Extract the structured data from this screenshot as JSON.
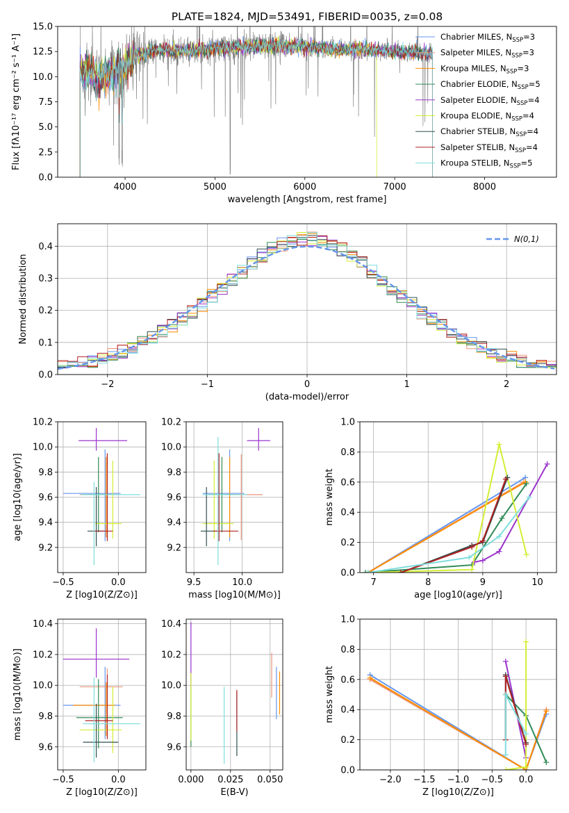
{
  "figure": {
    "title": "PLATE=1824, MJD=53491, FIBERID=0035, z=0.08"
  },
  "colors": {
    "Chabrier MILES": "#6495ED",
    "Salpeter MILES": "#E9967A",
    "Kroupa MILES": "#FF8C00",
    "Chabrier ELODIE": "#2E8B57",
    "Salpeter ELODIE": "#9932CC",
    "Kroupa ELODIE": "#D4EE34",
    "Chabrier STELIB": "#2F4F4F",
    "Salpeter STELIB": "#B22222",
    "Kroupa STELIB": "#7FDDDD",
    "data": "#808080",
    "normal": "#6495ED"
  },
  "chart_data": [
    {
      "id": "spectrum",
      "type": "line",
      "xlabel": "wavelength [Angstrom, rest frame]",
      "ylabel": "Flux [fλ10⁻¹⁷ erg cm⁻² s⁻¹ A⁻¹]",
      "xlim": [
        3250,
        8800
      ],
      "ylim": [
        0,
        15
      ],
      "xticks": [
        4000,
        5000,
        6000,
        7000,
        8000
      ],
      "yticks": [
        0.0,
        2.5,
        5.0,
        7.5,
        10.0,
        12.5,
        15.0
      ],
      "x_range_data": [
        3500,
        7420
      ],
      "legend_loc": "right",
      "legend": [
        {
          "name": "Chabrier MILES",
          "label": "Chabrier MILES, N",
          "sub": "SSP",
          "tail": "=3"
        },
        {
          "name": "Salpeter MILES",
          "label": "Salpeter MILES, N",
          "sub": "SSP",
          "tail": "=3"
        },
        {
          "name": "Kroupa MILES",
          "label": "Kroupa MILES, N",
          "sub": "SSP",
          "tail": "=3"
        },
        {
          "name": "Chabrier ELODIE",
          "label": "Chabrier ELODIE, N",
          "sub": "SSP",
          "tail": "=5"
        },
        {
          "name": "Salpeter ELODIE",
          "label": "Salpeter ELODIE, N",
          "sub": "SSP",
          "tail": "=4"
        },
        {
          "name": "Kroupa ELODIE",
          "label": "Kroupa ELODIE, N",
          "sub": "SSP",
          "tail": "=4"
        },
        {
          "name": "Chabrier STELIB",
          "label": "Chabrier STELIB, N",
          "sub": "SSP",
          "tail": "=4"
        },
        {
          "name": "Salpeter STELIB",
          "label": "Salpeter STELIB, N",
          "sub": "SSP",
          "tail": "=4"
        },
        {
          "name": "Kroupa STELIB",
          "label": "Kroupa STELIB, N",
          "sub": "SSP",
          "tail": "=5"
        }
      ]
    },
    {
      "id": "residuals",
      "type": "histogram",
      "xlabel": "(data-model)/error",
      "ylabel": "Normed distribution",
      "xlim": [
        -2.5,
        2.5
      ],
      "ylim": [
        0,
        0.47
      ],
      "xticks": [
        -2,
        -1,
        0,
        1,
        2
      ],
      "yticks": [
        0.0,
        0.1,
        0.2,
        0.3,
        0.4
      ],
      "grid": true,
      "bin_width": 0.1,
      "legend_loc": "top-right",
      "legend": "N(0,1)"
    },
    {
      "id": "age-vs-Z",
      "type": "errorbar",
      "xlabel": "Z [log10(Z/Z⊙)]",
      "ylabel": "age [log10(age/yr)]",
      "xlim": [
        -0.55,
        0.25
      ],
      "ylim": [
        9.0,
        10.2
      ],
      "xticks": [
        -0.5,
        0.0
      ],
      "yticks": [
        9.2,
        9.4,
        9.6,
        9.8,
        10.0,
        10.2
      ],
      "grid": true,
      "points": [
        {
          "name": "Chabrier MILES",
          "x": -0.12,
          "xerr": [
            0.38,
            0.14
          ],
          "y": 9.63,
          "yerr": [
            0.38,
            0.35
          ]
        },
        {
          "name": "Salpeter MILES",
          "x": -0.1,
          "xerr": [
            0.25,
            0.1
          ],
          "y": 9.62,
          "yerr": [
            0.36,
            0.32
          ]
        },
        {
          "name": "Kroupa MILES",
          "x": -0.11,
          "xerr": [
            0.22,
            0.08
          ],
          "y": 9.62,
          "yerr": [
            0.34,
            0.3
          ]
        },
        {
          "name": "Chabrier ELODIE",
          "x": -0.18,
          "xerr": [
            0.12,
            0.12
          ],
          "y": 9.62,
          "yerr": [
            0.3,
            0.3
          ]
        },
        {
          "name": "Salpeter ELODIE",
          "x": -0.2,
          "xerr": [
            0.16,
            0.28
          ],
          "y": 10.05,
          "yerr": [
            0.08,
            0.1
          ]
        },
        {
          "name": "Kroupa ELODIE",
          "x": -0.05,
          "xerr": [
            0.16,
            0.08
          ],
          "y": 9.39,
          "yerr": [
            0.12,
            0.5
          ]
        },
        {
          "name": "Chabrier STELIB",
          "x": -0.2,
          "xerr": [
            0.08,
            0.07
          ],
          "y": 9.33,
          "yerr": [
            0.12,
            0.35
          ]
        },
        {
          "name": "Salpeter STELIB",
          "x": -0.1,
          "xerr": [
            0.12,
            0.05
          ],
          "y": 9.33,
          "yerr": [
            0.08,
            0.62
          ]
        },
        {
          "name": "Kroupa STELIB",
          "x": -0.22,
          "xerr": [
            0.12,
            0.42
          ],
          "y": 9.62,
          "yerr": [
            0.56,
            0.1
          ]
        }
      ]
    },
    {
      "id": "age-vs-mass",
      "type": "errorbar",
      "xlabel": "mass [log10(M/M⊙)]",
      "ylabel": "",
      "xlim": [
        9.42,
        10.42
      ],
      "ylim": [
        9.0,
        10.2
      ],
      "xticks": [
        9.5,
        10.0
      ],
      "yticks": [
        9.2,
        9.4,
        9.6,
        9.8,
        10.0,
        10.2
      ],
      "grid": true,
      "points": [
        {
          "name": "Chabrier MILES",
          "x": 9.87,
          "xerr": [
            0.28,
            0.15
          ],
          "y": 9.63,
          "yerr": [
            0.38,
            0.35
          ]
        },
        {
          "name": "Salpeter MILES",
          "x": 9.99,
          "xerr": [
            0.12,
            0.22
          ],
          "y": 9.62,
          "yerr": [
            0.36,
            0.32
          ]
        },
        {
          "name": "Kroupa MILES",
          "x": 9.87,
          "xerr": [
            0.2,
            0.12
          ],
          "y": 9.62,
          "yerr": [
            0.34,
            0.3
          ]
        },
        {
          "name": "Chabrier ELODIE",
          "x": 9.79,
          "xerr": [
            0.16,
            0.12
          ],
          "y": 9.62,
          "yerr": [
            0.3,
            0.3
          ]
        },
        {
          "name": "Salpeter ELODIE",
          "x": 10.17,
          "xerr": [
            0.12,
            0.12
          ],
          "y": 10.05,
          "yerr": [
            0.08,
            0.1
          ]
        },
        {
          "name": "Kroupa ELODIE",
          "x": 9.71,
          "xerr": [
            0.12,
            0.2
          ],
          "y": 9.39,
          "yerr": [
            0.12,
            0.5
          ]
        },
        {
          "name": "Chabrier STELIB",
          "x": 9.63,
          "xerr": [
            0.06,
            0.12
          ],
          "y": 9.33,
          "yerr": [
            0.12,
            0.35
          ]
        },
        {
          "name": "Salpeter STELIB",
          "x": 9.76,
          "xerr": [
            0.06,
            0.2
          ],
          "y": 9.33,
          "yerr": [
            0.08,
            0.62
          ]
        },
        {
          "name": "Kroupa STELIB",
          "x": 9.75,
          "xerr": [
            0.16,
            0.3
          ],
          "y": 9.62,
          "yerr": [
            0.56,
            0.46
          ]
        }
      ]
    },
    {
      "id": "weight-vs-age",
      "type": "line",
      "xlabel": "age [log10(age/yr)]",
      "ylabel": "mass weight",
      "xlim": [
        6.75,
        10.35
      ],
      "ylim": [
        0,
        1
      ],
      "xticks": [
        7,
        8,
        9,
        10
      ],
      "yticks": [
        0.0,
        0.2,
        0.4,
        0.6,
        0.8,
        1.0
      ],
      "grid": true,
      "series": [
        {
          "name": "Chabrier MILES",
          "x": [
            6.9,
            9.78
          ],
          "y": [
            0.0,
            0.63
          ]
        },
        {
          "name": "Salpeter MILES",
          "x": [
            6.9,
            9.75
          ],
          "y": [
            0.0,
            0.6
          ]
        },
        {
          "name": "Kroupa MILES",
          "x": [
            6.9,
            9.78
          ],
          "y": [
            0.0,
            0.6
          ]
        },
        {
          "name": "Chabrier ELODIE",
          "x": [
            6.85,
            8.8,
            9.35,
            9.8
          ],
          "y": [
            0.0,
            0.05,
            0.36,
            0.59
          ]
        },
        {
          "name": "Salpeter ELODIE",
          "x": [
            8.85,
            9.0,
            9.3,
            10.18
          ],
          "y": [
            0.07,
            0.08,
            0.14,
            0.72
          ]
        },
        {
          "name": "Kroupa ELODIE",
          "x": [
            6.9,
            8.8,
            9.3,
            9.8
          ],
          "y": [
            0.0,
            0.02,
            0.85,
            0.12
          ]
        },
        {
          "name": "Chabrier STELIB",
          "x": [
            7.5,
            8.8,
            9.0,
            9.45
          ],
          "y": [
            0.0,
            0.18,
            0.2,
            0.63
          ]
        },
        {
          "name": "Salpeter STELIB",
          "x": [
            7.5,
            8.8,
            9.0,
            9.42
          ],
          "y": [
            0.0,
            0.17,
            0.21,
            0.62
          ]
        },
        {
          "name": "Kroupa STELIB",
          "x": [
            6.9,
            8.75,
            9.3,
            9.85
          ],
          "y": [
            0.0,
            0.1,
            0.24,
            0.5
          ]
        }
      ]
    },
    {
      "id": "mass-vs-Z",
      "type": "errorbar",
      "xlabel": "Z [log10(Z/Z⊙)]",
      "ylabel": "mass [log10(M/M⊙)]",
      "xlim": [
        -0.55,
        0.25
      ],
      "ylim": [
        9.45,
        10.43
      ],
      "xticks": [
        -0.5,
        0.0
      ],
      "yticks": [
        9.6,
        9.8,
        10.0,
        10.2,
        10.4
      ],
      "grid": true,
      "points": [
        {
          "name": "Chabrier MILES",
          "x": -0.12,
          "xerr": [
            0.38,
            0.14
          ],
          "y": 9.87,
          "yerr": [
            0.22,
            0.25
          ]
        },
        {
          "name": "Salpeter MILES",
          "x": -0.1,
          "xerr": [
            0.25,
            0.14
          ],
          "y": 9.99,
          "yerr": [
            0.17,
            0.12
          ]
        },
        {
          "name": "Kroupa MILES",
          "x": -0.11,
          "xerr": [
            0.3,
            0.08
          ],
          "y": 9.87,
          "yerr": [
            0.2,
            0.15
          ]
        },
        {
          "name": "Chabrier ELODIE",
          "x": -0.18,
          "xerr": [
            0.2,
            0.22
          ],
          "y": 9.79,
          "yerr": [
            0.2,
            0.25
          ]
        },
        {
          "name": "Salpeter ELODIE",
          "x": -0.2,
          "xerr": [
            0.3,
            0.3
          ],
          "y": 10.17,
          "yerr": [
            0.12,
            0.2
          ]
        },
        {
          "name": "Kroupa ELODIE",
          "x": -0.05,
          "xerr": [
            0.3,
            0.08
          ],
          "y": 9.71,
          "yerr": [
            0.15,
            0.28
          ]
        },
        {
          "name": "Chabrier STELIB",
          "x": -0.2,
          "xerr": [
            0.12,
            0.2
          ],
          "y": 9.63,
          "yerr": [
            0.1,
            0.25
          ]
        },
        {
          "name": "Salpeter STELIB",
          "x": -0.1,
          "xerr": [
            0.2,
            0.05
          ],
          "y": 9.77,
          "yerr": [
            0.12,
            0.3
          ]
        },
        {
          "name": "Kroupa STELIB",
          "x": -0.22,
          "xerr": [
            0.1,
            0.42
          ],
          "y": 9.75,
          "yerr": [
            0.25,
            0.3
          ]
        }
      ]
    },
    {
      "id": "mass-vs-ebv",
      "type": "errorbar",
      "xlabel": "E(B-V)",
      "ylabel": "",
      "xlim": [
        -0.003,
        0.058
      ],
      "ylim": [
        9.45,
        10.43
      ],
      "xticks": [
        0.0,
        0.025,
        0.05
      ],
      "xticklabels": [
        "0.000",
        "0.025",
        "0.050"
      ],
      "yticks": [
        9.6,
        9.8,
        10.0,
        10.2,
        10.4
      ],
      "grid": true,
      "points": [
        {
          "name": "Chabrier MILES",
          "x": 0.054,
          "y": 9.95,
          "yerr": [
            0.17,
            0.17
          ]
        },
        {
          "name": "Salpeter MILES",
          "x": 0.051,
          "y": 10.06,
          "yerr": [
            0.14,
            0.15
          ]
        },
        {
          "name": "Kroupa MILES",
          "x": 0.056,
          "y": 9.95,
          "yerr": [
            0.14,
            0.14
          ]
        },
        {
          "name": "Chabrier ELODIE",
          "x": 0.0,
          "y": 9.8,
          "yerr": [
            0.2,
            0.2
          ]
        },
        {
          "name": "Salpeter ELODIE",
          "x": 0.0,
          "y": 10.19,
          "yerr": [
            0.2,
            0.22
          ]
        },
        {
          "name": "Kroupa ELODIE",
          "x": 0.0,
          "y": 9.86,
          "yerr": [
            0.22,
            0.22
          ]
        },
        {
          "name": "Chabrier STELIB",
          "x": 0.029,
          "y": 9.76,
          "yerr": [
            0.22,
            0.2
          ]
        },
        {
          "name": "Salpeter STELIB",
          "x": 0.029,
          "y": 9.83,
          "yerr": [
            0.13,
            0.14
          ]
        },
        {
          "name": "Kroupa STELIB",
          "x": 0.021,
          "y": 9.74,
          "yerr": [
            0.25,
            0.25
          ]
        }
      ]
    },
    {
      "id": "weight-vs-Z",
      "type": "line",
      "xlabel": "Z [log10(Z/Z⊙)]",
      "ylabel": "mass weight",
      "xlim": [
        -2.45,
        0.45
      ],
      "ylim": [
        0,
        1
      ],
      "xticks": [
        -2.0,
        -1.5,
        -1.0,
        -0.5,
        0.0
      ],
      "yticks": [
        0.0,
        0.2,
        0.4,
        0.6,
        0.8,
        1.0
      ],
      "grid": true,
      "series": [
        {
          "name": "Chabrier MILES",
          "x": [
            -2.3,
            0.0,
            0.3
          ],
          "y": [
            0.63,
            0.0,
            0.37
          ]
        },
        {
          "name": "Salpeter MILES",
          "x": [
            -2.3,
            0.0,
            0.3
          ],
          "y": [
            0.6,
            0.0,
            0.4
          ]
        },
        {
          "name": "Kroupa MILES",
          "x": [
            -2.3,
            0.0,
            0.3
          ],
          "y": [
            0.61,
            0.0,
            0.39
          ]
        },
        {
          "name": "Chabrier ELODIE",
          "x": [
            -0.3,
            0.0,
            0.3
          ],
          "y": [
            0.5,
            0.36,
            0.05
          ]
        },
        {
          "name": "Salpeter ELODIE",
          "x": [
            -0.3,
            0.0
          ],
          "y": [
            0.72,
            0.08
          ]
        },
        {
          "name": "Kroupa ELODIE",
          "x": [
            -0.3,
            0.0,
            0.0
          ],
          "y": [
            0.0,
            0.02,
            0.85
          ]
        },
        {
          "name": "Chabrier STELIB",
          "x": [
            -0.3,
            -0.3,
            0.0
          ],
          "y": [
            0.2,
            0.63,
            0.18
          ]
        },
        {
          "name": "Salpeter STELIB",
          "x": [
            -0.3,
            -0.3,
            0.0
          ],
          "y": [
            0.2,
            0.62,
            0.17
          ]
        },
        {
          "name": "Kroupa STELIB",
          "x": [
            -0.3,
            -0.3,
            0.0
          ],
          "y": [
            0.1,
            0.5,
            0.24
          ]
        }
      ]
    }
  ]
}
